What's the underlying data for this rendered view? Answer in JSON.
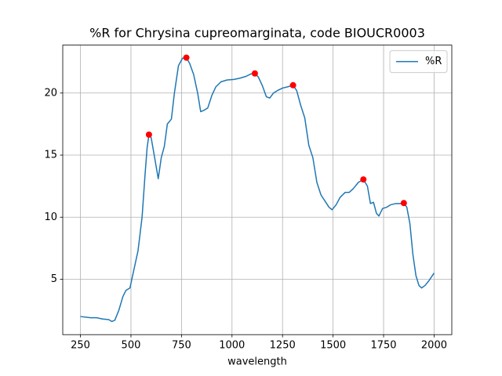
{
  "chart_data": {
    "type": "line",
    "title": "%R for Chrysina cupreomarginata, code BIOUCR0003",
    "xlabel": "wavelength",
    "series": [
      {
        "name": "%R",
        "color": "#1f77b4",
        "x": [
          250,
          300,
          330,
          360,
          390,
          405,
          420,
          440,
          460,
          475,
          495,
          515,
          535,
          555,
          570,
          580,
          589,
          600,
          615,
          635,
          650,
          665,
          680,
          700,
          715,
          735,
          755,
          774,
          790,
          810,
          830,
          845,
          860,
          880,
          900,
          920,
          945,
          975,
          1010,
          1040,
          1070,
          1095,
          1113,
          1130,
          1150,
          1170,
          1187,
          1205,
          1225,
          1250,
          1275,
          1302,
          1320,
          1340,
          1360,
          1380,
          1400,
          1420,
          1440,
          1460,
          1480,
          1495,
          1515,
          1535,
          1560,
          1580,
          1600,
          1625,
          1650,
          1670,
          1685,
          1700,
          1715,
          1727,
          1745,
          1765,
          1785,
          1810,
          1830,
          1850,
          1865,
          1880,
          1895,
          1910,
          1925,
          1938,
          1955,
          1975,
          2000
        ],
        "values": [
          2.0,
          1.9,
          1.9,
          1.8,
          1.75,
          1.6,
          1.7,
          2.5,
          3.6,
          4.1,
          4.3,
          5.8,
          7.3,
          10.0,
          13.5,
          15.6,
          16.65,
          16.4,
          15.0,
          13.1,
          14.8,
          15.7,
          17.5,
          17.9,
          20.0,
          22.2,
          22.8,
          22.85,
          22.4,
          21.5,
          20.0,
          18.5,
          18.6,
          18.8,
          19.8,
          20.5,
          20.9,
          21.05,
          21.1,
          21.2,
          21.35,
          21.55,
          21.58,
          21.3,
          20.6,
          19.7,
          19.6,
          20.0,
          20.2,
          20.4,
          20.5,
          20.63,
          20.2,
          19.0,
          18.0,
          15.8,
          14.8,
          12.8,
          11.8,
          11.3,
          10.8,
          10.6,
          11.0,
          11.6,
          12.0,
          12.0,
          12.3,
          12.8,
          13.04,
          12.5,
          11.1,
          11.2,
          10.3,
          10.1,
          10.7,
          10.8,
          11.0,
          11.1,
          11.1,
          11.14,
          10.8,
          9.5,
          7.0,
          5.3,
          4.5,
          4.3,
          4.5,
          4.9,
          5.5
        ]
      }
    ],
    "points": {
      "color": "red",
      "x": [
        589,
        774,
        1113,
        1302,
        1650,
        1850
      ],
      "values": [
        16.65,
        22.85,
        21.58,
        20.63,
        13.04,
        11.14
      ]
    },
    "xlim": [
      162.5,
      2087.5
    ],
    "xticks": [
      250,
      500,
      750,
      1000,
      1250,
      1500,
      1750,
      2000
    ],
    "ylim": [
      0.54,
      23.86
    ],
    "yticks": [
      5,
      10,
      15,
      20
    ],
    "grid": true,
    "legend": "upper right"
  }
}
